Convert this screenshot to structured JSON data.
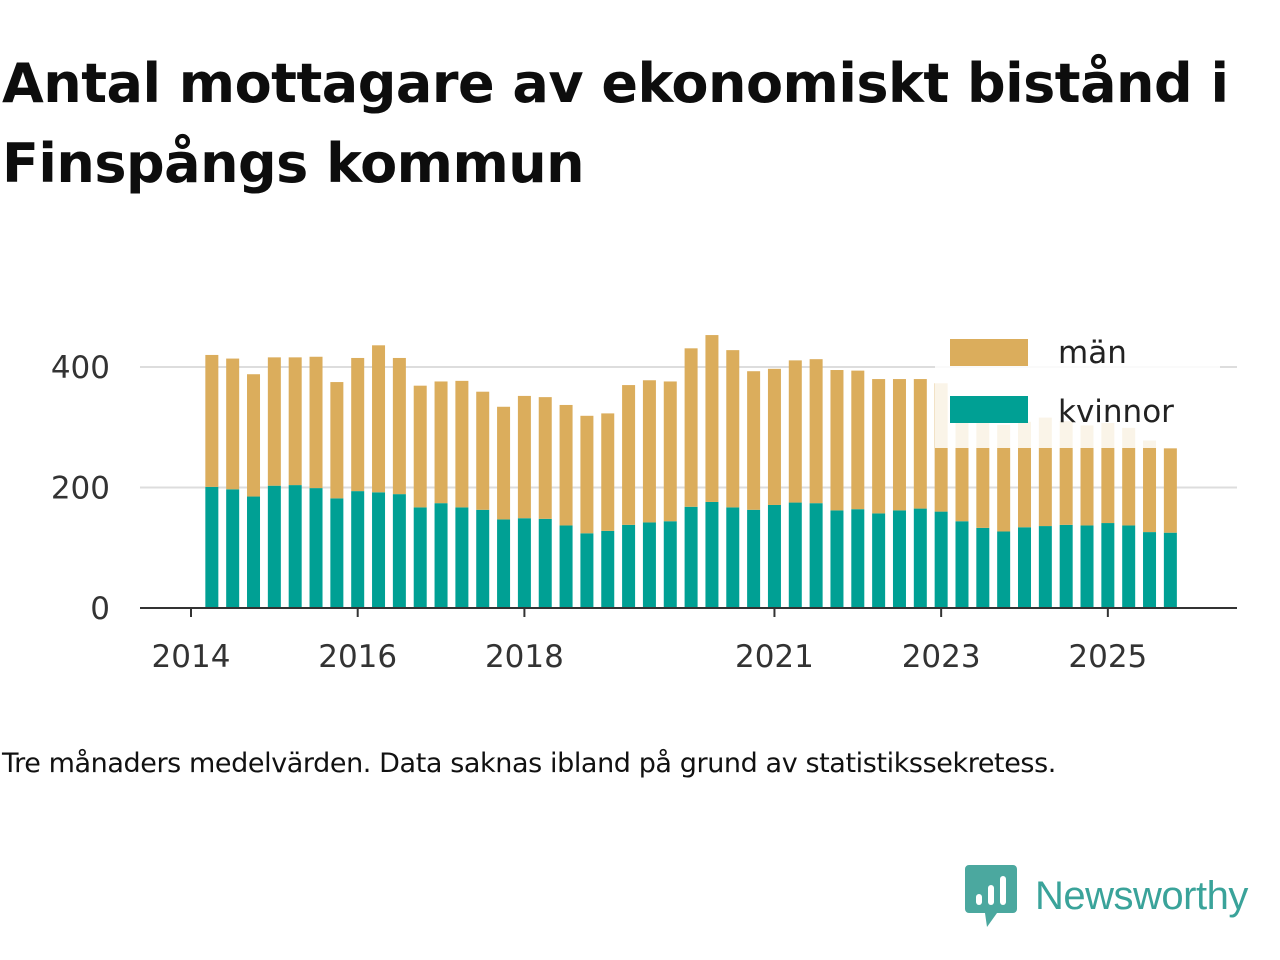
{
  "title": "Antal mottagare av ekonomiskt bistånd i Finspångs kommun",
  "caption": "Tre månaders medelvärden. Data saknas ibland på grund av statistikssekretess.",
  "brand": {
    "name": "Newsworthy",
    "icon": "newsworthy-logo-icon"
  },
  "colors": {
    "man": "#dbad5c",
    "kvinnor": "#00a094",
    "axis": "#333333",
    "grid": "#dddddd",
    "brand": "#3aa39a"
  },
  "chart_data": {
    "type": "bar",
    "stacked": true,
    "title": "Antal mottagare av ekonomiskt bistånd i Finspångs kommun",
    "xlabel": "",
    "ylabel": "",
    "ylim": [
      0,
      480
    ],
    "yticks": [
      0,
      200,
      400
    ],
    "xticks": [
      {
        "label": "2014",
        "x": 2014.0
      },
      {
        "label": "2016",
        "x": 2016.0
      },
      {
        "label": "2018",
        "x": 2018.0
      },
      {
        "label": "2021",
        "x": 2021.0
      },
      {
        "label": "2023",
        "x": 2023.0
      },
      {
        "label": "2025",
        "x": 2025.0
      }
    ],
    "grid": true,
    "legend_position": "top-right",
    "x": [
      2014.25,
      2014.5,
      2014.75,
      2015.0,
      2015.25,
      2015.5,
      2015.75,
      2016.0,
      2016.25,
      2016.5,
      2016.75,
      2017.0,
      2017.25,
      2017.5,
      2017.75,
      2018.0,
      2018.25,
      2018.5,
      2018.75,
      2019.0,
      2019.25,
      2019.5,
      2019.75,
      2020.0,
      2020.25,
      2020.5,
      2020.75,
      2021.0,
      2021.25,
      2021.5,
      2021.75,
      2022.0,
      2022.25,
      2022.5,
      2022.75,
      2023.0,
      2023.25,
      2023.5,
      2023.75,
      2024.0,
      2024.25,
      2024.5,
      2024.75,
      2025.0,
      2025.25,
      2025.5,
      2025.75
    ],
    "series": [
      {
        "name": "kvinnor",
        "values": [
          201,
          197,
          185,
          203,
          204,
          199,
          182,
          194,
          192,
          189,
          167,
          174,
          167,
          163,
          147,
          149,
          148,
          137,
          124,
          128,
          138,
          142,
          144,
          168,
          176,
          167,
          163,
          171,
          175,
          174,
          162,
          164,
          157,
          162,
          165,
          160,
          144,
          133,
          127,
          134,
          136,
          138,
          137,
          141,
          137,
          126,
          125
        ]
      },
      {
        "name": "män",
        "values": [
          219,
          217,
          203,
          213,
          212,
          218,
          193,
          221,
          244,
          226,
          202,
          202,
          210,
          196,
          187,
          203,
          202,
          200,
          195,
          195,
          232,
          236,
          232,
          263,
          277,
          261,
          230,
          226,
          236,
          239,
          233,
          230,
          223,
          218,
          215,
          213,
          195,
          184,
          177,
          175,
          180,
          172,
          166,
          166,
          162,
          152,
          140
        ]
      }
    ]
  }
}
